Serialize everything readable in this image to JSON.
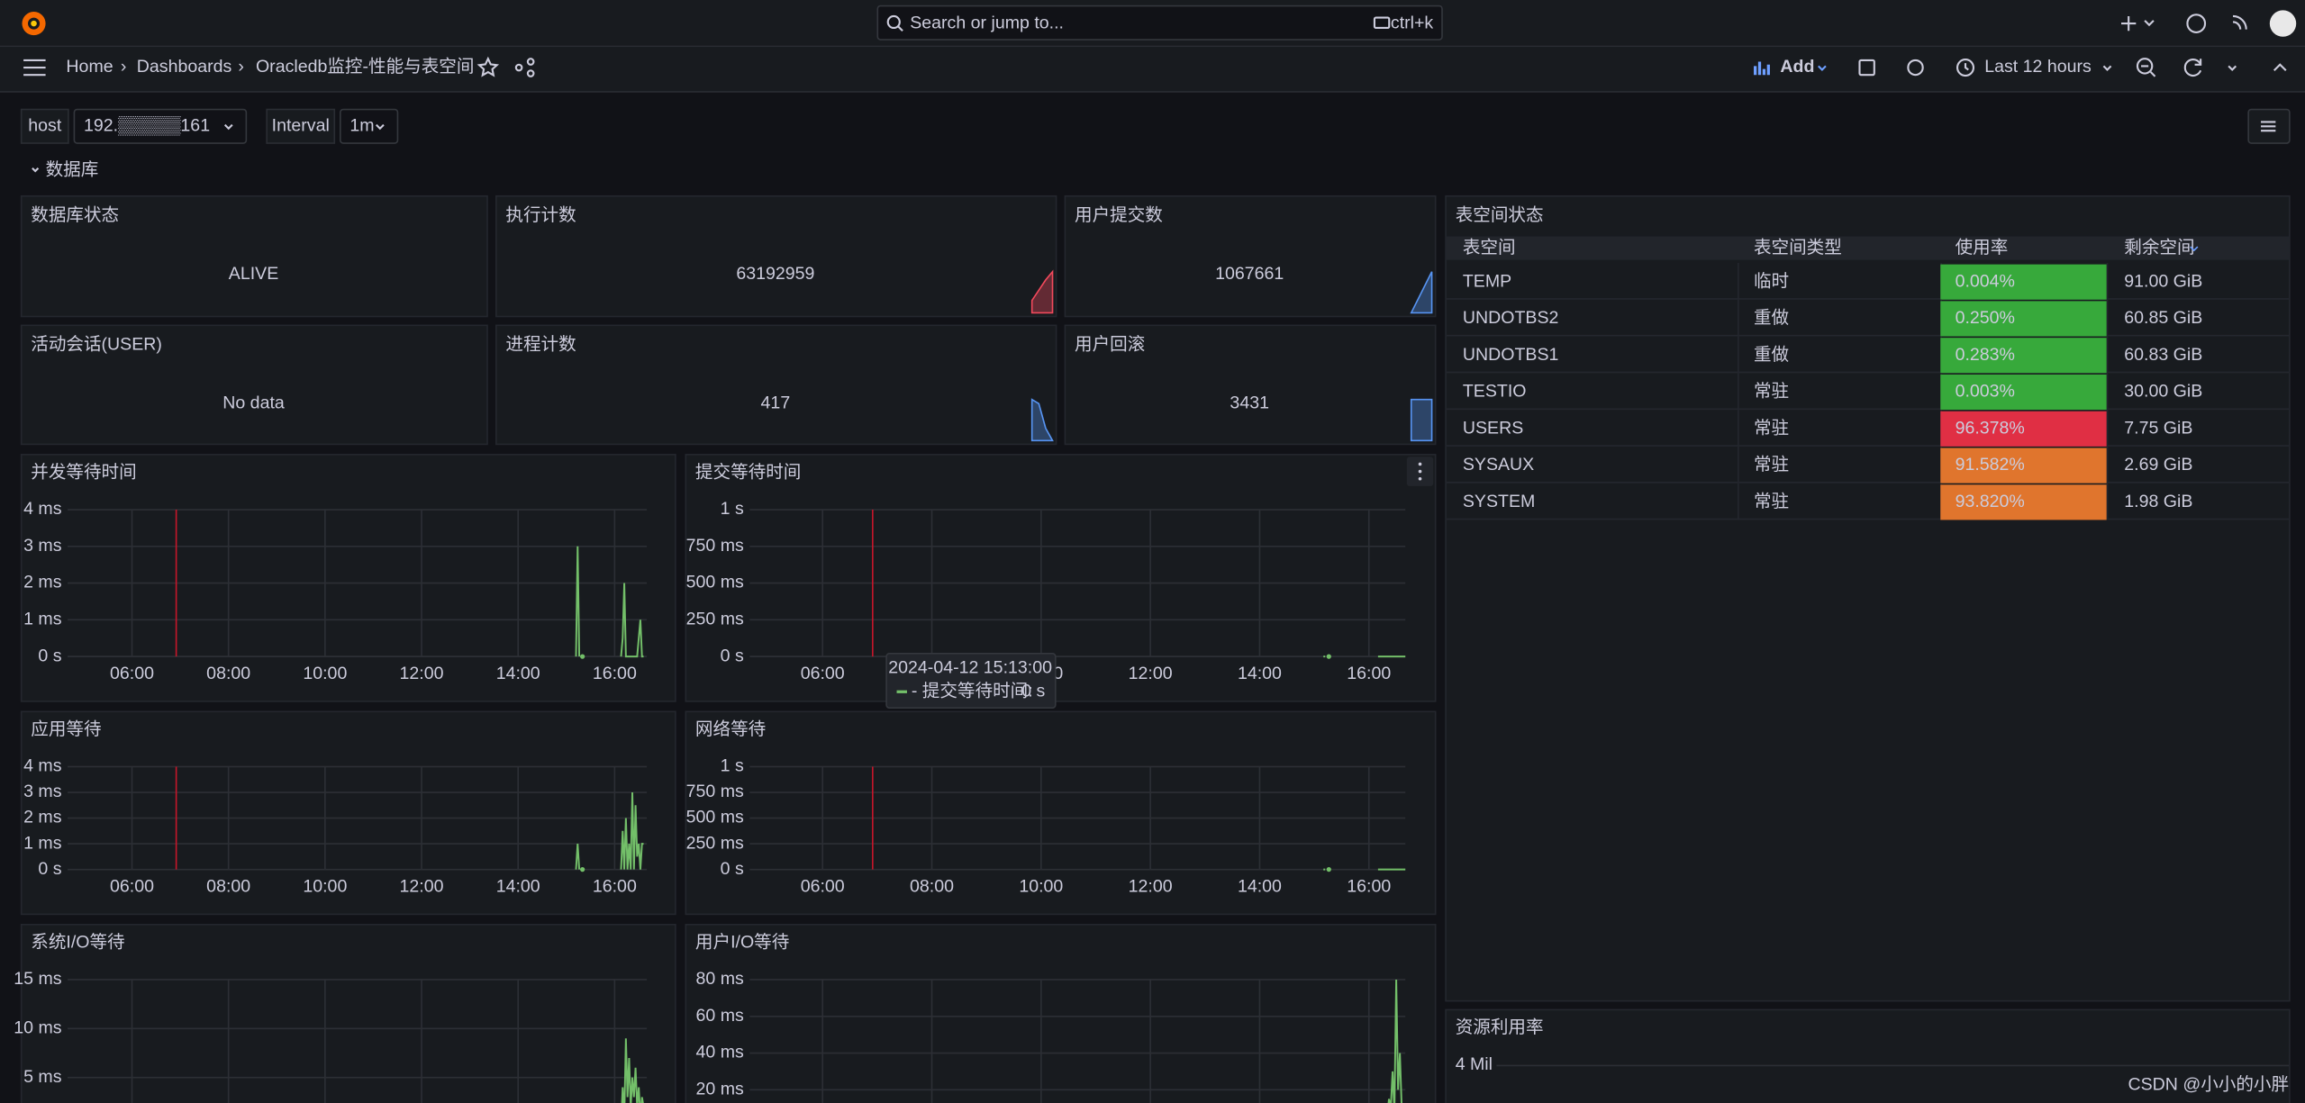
{
  "topbar": {
    "search_placeholder": "Search or jump to...",
    "search_shortcut": "ctrl+k"
  },
  "navbar": {
    "breadcrumbs": [
      "Home",
      "Dashboards",
      "Oracledb监控-性能与表空间"
    ],
    "add": "Add",
    "time_range": "Last 12 hours"
  },
  "variables": [
    {
      "label": "host",
      "value": "192.▒▒▒▒▒161"
    },
    {
      "label": "Interval",
      "value": "1m"
    }
  ],
  "row_title": "数据库",
  "stats": [
    {
      "title": "数据库状态",
      "value": "ALIVE",
      "color": "#37a93b"
    },
    {
      "title": "执行计数",
      "value": "63192959",
      "color": "#f2495c",
      "sparkline": [
        0.3,
        0.55,
        0.8,
        1
      ],
      "spark_color": "#f2495c"
    },
    {
      "title": "用户提交数",
      "value": "1067661",
      "color": "#d8d9da",
      "sparkline": [
        0,
        0.5,
        1
      ],
      "spark_color": "#5794f2"
    },
    {
      "title": "活动会话(USER)",
      "value": "No data",
      "color": "#73bf69"
    },
    {
      "title": "进程计数",
      "value": "417",
      "color": "#d8d9da",
      "sparkline": [
        1,
        0.9,
        0.3,
        0
      ],
      "spark_color": "#5794f2"
    },
    {
      "title": "用户回滚",
      "value": "3431",
      "color": "#d8d9da",
      "sparkline": [
        1,
        1,
        1
      ],
      "spark_color": "#5794f2"
    }
  ],
  "table": {
    "title": "表空间状态",
    "columns": [
      "表空间",
      "表空间类型",
      "使用率",
      "剩余空间"
    ],
    "rows": [
      [
        "TEMP",
        "临时",
        "0.004%",
        "91.00 GiB"
      ],
      [
        "UNDOTBS2",
        "重做",
        "0.250%",
        "60.85 GiB"
      ],
      [
        "UNDOTBS1",
        "重做",
        "0.283%",
        "60.83 GiB"
      ],
      [
        "TESTIO",
        "常驻",
        "0.003%",
        "30.00 GiB"
      ],
      [
        "USERS",
        "常驻",
        "96.378%",
        "7.75 GiB"
      ],
      [
        "SYSAUX",
        "常驻",
        "91.582%",
        "2.69 GiB"
      ],
      [
        "SYSTEM",
        "常驻",
        "93.820%",
        "1.98 GiB"
      ]
    ],
    "usage_colors": [
      "#37a93b",
      "#37a93b",
      "#37a93b",
      "#37a93b",
      "#e02f44",
      "#e0752d",
      "#e0752d"
    ]
  },
  "charts": [
    {
      "type": "line",
      "title": "并发等待时间",
      "ylim": [
        0,
        4
      ],
      "yticks": [
        {
          "value": 0,
          "label": "0 s"
        },
        {
          "value": 1,
          "label": "1 ms"
        },
        {
          "value": 2,
          "label": "2 ms"
        },
        {
          "value": 3,
          "label": "3 ms"
        },
        {
          "value": 4,
          "label": "4 ms"
        }
      ],
      "xlim": [
        "04:40",
        "16:40"
      ],
      "xticks": [
        "06:00",
        "08:00",
        "10:00",
        "12:00",
        "14:00",
        "16:00"
      ],
      "annotation_time": "06:55",
      "series": [
        {
          "color": "#73bf69",
          "x": [
            "15:12",
            "15:14",
            "15:16",
            "15:18",
            "15:20",
            "15:22",
            "16:08",
            "16:10",
            "16:12",
            "16:14",
            "16:16",
            "16:20",
            "16:24",
            "16:28",
            "16:32",
            "16:34",
            "16:36"
          ],
          "values": [
            0,
            3,
            0,
            null,
            0,
            null,
            0,
            0.5,
            2,
            0,
            0,
            0,
            0,
            0,
            1,
            0,
            0
          ]
        }
      ]
    },
    {
      "type": "line",
      "title": "提交等待时间",
      "ylim": [
        0,
        1
      ],
      "yticks": [
        {
          "value": 0,
          "label": "0 s"
        },
        {
          "value": 0.25,
          "label": "250 ms"
        },
        {
          "value": 0.5,
          "label": "500 ms"
        },
        {
          "value": 0.75,
          "label": "750 ms"
        },
        {
          "value": 1,
          "label": "1 s"
        }
      ],
      "xlim": [
        "04:40",
        "16:40"
      ],
      "xticks": [
        "06:00",
        "08:00",
        "10:00",
        "12:00",
        "14:00",
        "16:00"
      ],
      "annotation_time": "06:55",
      "series": [
        {
          "color": "#73bf69",
          "x": [
            "15:10",
            "15:12",
            "15:14",
            "15:16",
            "15:18",
            "16:10",
            "16:15",
            "16:20",
            "16:25",
            "16:30",
            "16:35",
            "16:40"
          ],
          "values": [
            0,
            0,
            null,
            0,
            null,
            0,
            0,
            0,
            0,
            0,
            0,
            0
          ]
        }
      ]
    },
    {
      "type": "line",
      "title": "应用等待",
      "ylim": [
        0,
        4
      ],
      "yticks": [
        {
          "value": 0,
          "label": "0 s"
        },
        {
          "value": 1,
          "label": "1 ms"
        },
        {
          "value": 2,
          "label": "2 ms"
        },
        {
          "value": 3,
          "label": "3 ms"
        },
        {
          "value": 4,
          "label": "4 ms"
        }
      ],
      "xlim": [
        "04:40",
        "16:40"
      ],
      "xticks": [
        "06:00",
        "08:00",
        "10:00",
        "12:00",
        "14:00",
        "16:00"
      ],
      "annotation_time": "06:55",
      "series": [
        {
          "color": "#73bf69",
          "x": [
            "15:12",
            "15:14",
            "15:16",
            "15:18",
            "15:20",
            "15:22",
            "16:08",
            "16:10",
            "16:12",
            "16:14",
            "16:16",
            "16:18",
            "16:20",
            "16:22",
            "16:24",
            "16:26",
            "16:28",
            "16:30",
            "16:32",
            "16:34",
            "16:36"
          ],
          "values": [
            0,
            1,
            0,
            null,
            0,
            null,
            0,
            1.5,
            0,
            2,
            0,
            1,
            0,
            3,
            0,
            2.5,
            0.5,
            1,
            0,
            1,
            1
          ]
        }
      ]
    },
    {
      "type": "line",
      "title": "网络等待",
      "ylim": [
        0,
        1
      ],
      "yticks": [
        {
          "value": 0,
          "label": "0 s"
        },
        {
          "value": 0.25,
          "label": "250 ms"
        },
        {
          "value": 0.5,
          "label": "500 ms"
        },
        {
          "value": 0.75,
          "label": "750 ms"
        },
        {
          "value": 1,
          "label": "1 s"
        }
      ],
      "xlim": [
        "04:40",
        "16:40"
      ],
      "xticks": [
        "06:00",
        "08:00",
        "10:00",
        "12:00",
        "14:00",
        "16:00"
      ],
      "annotation_time": "06:55",
      "series": [
        {
          "color": "#73bf69",
          "x": [
            "15:10",
            "15:12",
            "15:14",
            "15:16",
            "15:18",
            "16:10",
            "16:20",
            "16:30",
            "16:40"
          ],
          "values": [
            0,
            0,
            null,
            0,
            null,
            0,
            0,
            0,
            0
          ]
        }
      ]
    },
    {
      "type": "line",
      "title": "系统I/O等待",
      "ylim": [
        0,
        15
      ],
      "yticks": [
        {
          "value": 5,
          "label": "5 ms"
        },
        {
          "value": 10,
          "label": "10 ms"
        },
        {
          "value": 15,
          "label": "15 ms"
        }
      ],
      "xlim": [
        "04:40",
        "16:40"
      ],
      "xgrid": [
        "06:00",
        "08:00",
        "10:00",
        "12:00",
        "14:00",
        "16:00"
      ],
      "series": [
        {
          "color": "#73bf69",
          "x": [
            "15:12",
            "15:13",
            "15:14",
            "15:16",
            "15:20",
            "16:08",
            "16:10",
            "16:12",
            "16:14",
            "16:16",
            "16:18",
            "16:20",
            "16:22",
            "16:24",
            "16:26",
            "16:28",
            "16:30",
            "16:32",
            "16:34",
            "16:36"
          ],
          "values": [
            0,
            2,
            0,
            null,
            null,
            0,
            4,
            1,
            9,
            3,
            7,
            2,
            5,
            3,
            6,
            2,
            4,
            1,
            3,
            2
          ]
        }
      ]
    },
    {
      "type": "line",
      "title": "用户I/O等待",
      "ylim": [
        0,
        80
      ],
      "yticks": [
        {
          "value": 20,
          "label": "20 ms"
        },
        {
          "value": 40,
          "label": "40 ms"
        },
        {
          "value": 60,
          "label": "60 ms"
        },
        {
          "value": 80,
          "label": "80 ms"
        }
      ],
      "xlim": [
        "04:40",
        "16:40"
      ],
      "xgrid": [
        "06:00",
        "08:00",
        "10:00",
        "12:00",
        "14:00",
        "16:00"
      ],
      "series": [
        {
          "color": "#73bf69",
          "x": [
            "15:10",
            "15:12",
            "15:14",
            "16:20",
            "16:22",
            "16:24",
            "16:26",
            "16:28",
            "16:30",
            "16:32",
            "16:34",
            "16:36"
          ],
          "values": [
            0,
            0,
            null,
            5,
            15,
            10,
            30,
            8,
            80,
            20,
            40,
            10
          ]
        }
      ]
    }
  ],
  "tooltip": {
    "time": "2024-04-12 15:13:00",
    "series": "- 提交等待时间:",
    "value": "0 s"
  },
  "resource": {
    "title": "资源利用率",
    "ytick_label": "4 Mil"
  },
  "watermark": "CSDN @小小的小胖"
}
